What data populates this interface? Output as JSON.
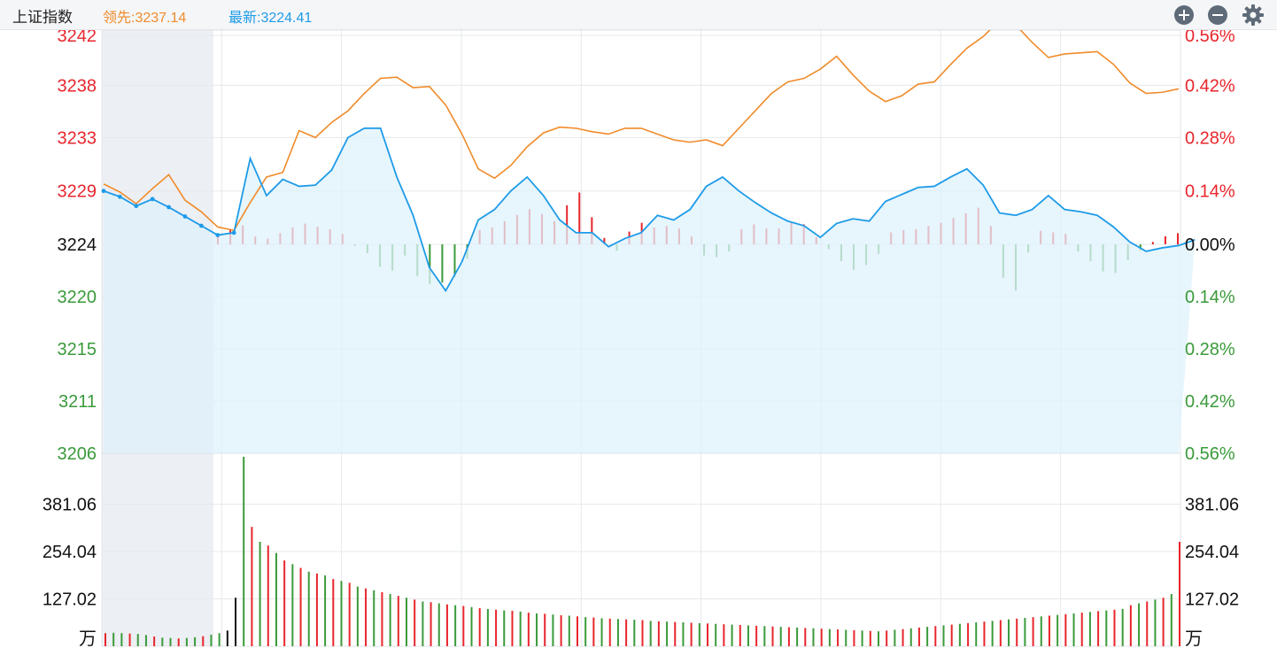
{
  "header": {
    "title": "上证指数",
    "leader_text": "领先:3237.14",
    "latest_text": "最新:3224.41",
    "zoom_in_icon": "plus-circle-icon",
    "zoom_out_icon": "minus-circle-icon",
    "settings_icon": "gear-icon"
  },
  "colors": {
    "up": "#e8262c",
    "down": "#3a9a3a",
    "leader_line": "#f08b2a",
    "latest_line": "#1e9be8",
    "area_fill": "#dff1fb",
    "grid": "#e6e8eb",
    "preopen_shade": "#eceff4"
  },
  "chart_data": [
    {
      "type": "line",
      "title": "",
      "ylim": [
        3206,
        3242
      ],
      "prev_close": 3224,
      "price_ticks_left": [
        "3242",
        "3238",
        "3233",
        "3229",
        "3224",
        "3220",
        "3215",
        "3211",
        "3206"
      ],
      "pct_ticks_right": [
        "0.56%",
        "0.42%",
        "0.28%",
        "0.14%",
        "0.00%",
        "0.14%",
        "0.28%",
        "0.42%",
        "0.56%"
      ],
      "series": [
        {
          "name": "领先",
          "values": [
            3229.2,
            3228.5,
            3227.5,
            3228.8,
            3230.0,
            3227.8,
            3226.8,
            3225.5,
            3225.2,
            3227.6,
            3229.8,
            3230.2,
            3233.8,
            3233.2,
            3234.5,
            3235.5,
            3237.0,
            3238.3,
            3238.4,
            3237.5,
            3237.6,
            3236.0,
            3233.5,
            3230.5,
            3229.7,
            3230.8,
            3232.4,
            3233.6,
            3234.1,
            3234.0,
            3233.7,
            3233.5,
            3234.0,
            3234.0,
            3233.5,
            3233.0,
            3232.8,
            3233.0,
            3232.5,
            3234.0,
            3235.5,
            3237.0,
            3238.0,
            3238.3,
            3239.1,
            3240.2,
            3238.6,
            3237.2,
            3236.3,
            3236.8,
            3237.8,
            3238.0,
            3239.5,
            3240.9,
            3241.9,
            3243.3,
            3242.9,
            3241.4,
            3240.1,
            3240.4,
            3240.5,
            3240.6,
            3239.5,
            3237.9,
            3237.0,
            3237.1,
            3237.4
          ]
        },
        {
          "name": "最新",
          "values": [
            3228.6,
            3228.1,
            3227.3,
            3227.9,
            3227.2,
            3226.4,
            3225.6,
            3224.8,
            3225.0,
            3231.4,
            3228.2,
            3229.6,
            3229.0,
            3229.1,
            3230.4,
            3233.2,
            3234.0,
            3234.0,
            3229.8,
            3226.5,
            3222.0,
            3220.0,
            3222.5,
            3226.1,
            3227.0,
            3228.6,
            3229.8,
            3228.2,
            3226.1,
            3225.0,
            3225.0,
            3223.8,
            3224.5,
            3225.0,
            3226.5,
            3226.1,
            3227.0,
            3229.0,
            3229.8,
            3228.6,
            3227.6,
            3226.7,
            3226.0,
            3225.6,
            3224.6,
            3225.8,
            3226.2,
            3226.0,
            3227.7,
            3228.3,
            3228.9,
            3229.0,
            3229.8,
            3230.5,
            3229.1,
            3226.7,
            3226.5,
            3227.0,
            3228.2,
            3227.0,
            3226.8,
            3226.5,
            3225.5,
            3224.2,
            3223.4,
            3223.7,
            3223.9,
            3224.4
          ]
        }
      ],
      "diff_bars": [
        1.2,
        1.9,
        2.4,
        1.0,
        0.7,
        1.4,
        2.1,
        2.6,
        2.2,
        1.9,
        1.3,
        -0.2,
        -1.1,
        -2.8,
        -3.3,
        -1.4,
        -4.0,
        -5.0,
        -4.8,
        -4.1,
        -1.8,
        1.8,
        2.1,
        2.9,
        3.7,
        4.4,
        3.8,
        2.9,
        4.9,
        6.5,
        3.4,
        0.8,
        -0.8,
        1.6,
        2.7,
        2.1,
        2.3,
        2.0,
        1.0,
        -1.4,
        -1.6,
        -0.9,
        1.9,
        2.5,
        2.0,
        2.0,
        2.7,
        2.5,
        0.9,
        -0.6,
        -2.1,
        -3.2,
        -2.6,
        -1.2,
        1.5,
        1.8,
        1.9,
        2.3,
        2.7,
        3.3,
        3.9,
        4.6,
        2.3,
        -4.2,
        -5.8,
        -1.0,
        1.7,
        1.5,
        1.3,
        -0.9,
        -2.1,
        -3.4,
        -3.6,
        -2.0,
        -0.8,
        0.3,
        1.0,
        1.4
      ]
    },
    {
      "type": "bar",
      "title": "",
      "ylabel": "万",
      "ylim": [
        0,
        508
      ],
      "volume_ticks": [
        "381.06",
        "254.04",
        "127.02"
      ],
      "volume": [
        35,
        36,
        35,
        34,
        33,
        30,
        26,
        23,
        22,
        21,
        22,
        24,
        27,
        31,
        35,
        42,
        130,
        508,
        320,
        280,
        270,
        250,
        230,
        220,
        210,
        200,
        195,
        190,
        180,
        175,
        170,
        160,
        155,
        150,
        145,
        140,
        135,
        130,
        125,
        120,
        118,
        115,
        112,
        110,
        108,
        105,
        102,
        100,
        98,
        96,
        95,
        93,
        90,
        88,
        87,
        85,
        83,
        82,
        80,
        78,
        77,
        75,
        74,
        73,
        72,
        71,
        70,
        68,
        67,
        66,
        65,
        64,
        63,
        62,
        61,
        60,
        59,
        58,
        57,
        56,
        55,
        54,
        53,
        52,
        51,
        50,
        49,
        48,
        47,
        46,
        45,
        44,
        43,
        42,
        41,
        40,
        42,
        44,
        46,
        48,
        50,
        52,
        54,
        56,
        58,
        60,
        62,
        64,
        66,
        68,
        70,
        72,
        74,
        76,
        78,
        80,
        82,
        84,
        86,
        88,
        90,
        92,
        94,
        96,
        98,
        100,
        110,
        115,
        120,
        125,
        130,
        140,
        280
      ]
    }
  ]
}
